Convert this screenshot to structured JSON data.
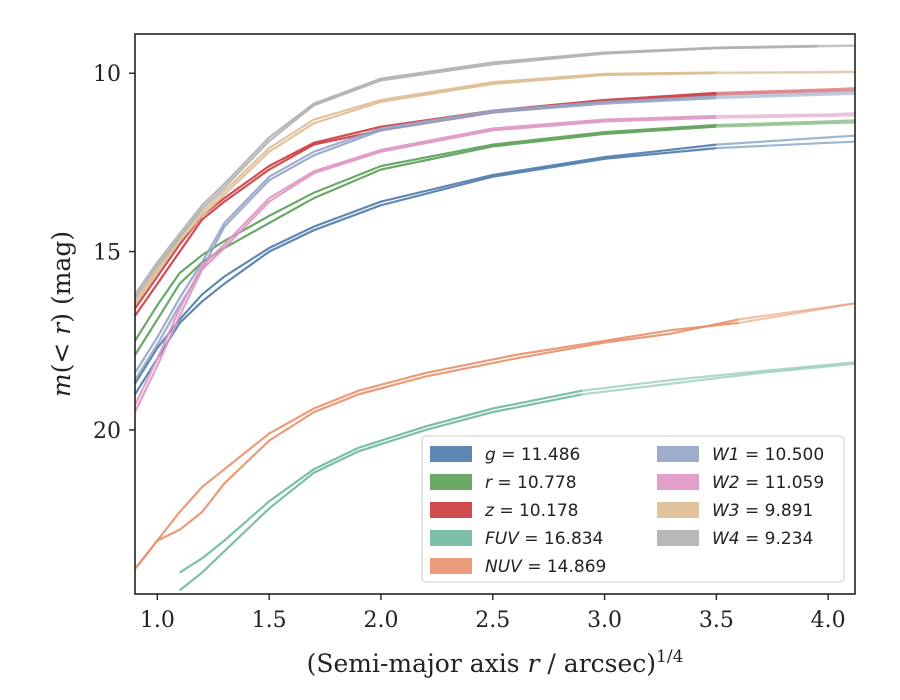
{
  "chart_data": {
    "type": "line",
    "xlabel": "(Semi-major axis r / arcsec)^{1/4}",
    "ylabel": "m(< r) (mag)",
    "xlim": [
      0.9,
      4.12
    ],
    "ylim": [
      24.6,
      8.9
    ],
    "y_inverted": true,
    "xticks": [
      "1.0",
      "1.5",
      "2.0",
      "2.5",
      "3.0",
      "3.5",
      "4.0"
    ],
    "yticks": [
      "10",
      "15",
      "20"
    ],
    "grid": false,
    "legend": {
      "placement": "lower-right",
      "columns": 2
    },
    "series": [
      {
        "name": "g",
        "label": "g = 11.486",
        "color": "#4c7bab",
        "x": [
          0.9,
          1.0,
          1.1,
          1.2,
          1.3,
          1.5,
          1.7,
          2.0,
          2.5,
          3.0,
          3.5,
          4.0,
          4.12
        ],
        "y": [
          19.0,
          18.0,
          17.0,
          16.4,
          15.9,
          15.0,
          14.4,
          13.7,
          12.9,
          12.4,
          12.1,
          11.95,
          11.92
        ],
        "y2": [
          18.7,
          17.7,
          16.9,
          16.2,
          15.7,
          14.9,
          14.3,
          13.6,
          12.85,
          12.35,
          12.0,
          11.8,
          11.75
        ],
        "fade_from_x": 3.6
      },
      {
        "name": "r",
        "label": "r = 10.778",
        "color": "#5a9f55",
        "x": [
          0.9,
          1.0,
          1.1,
          1.2,
          1.3,
          1.5,
          1.7,
          2.0,
          2.5,
          3.0,
          3.5,
          4.0,
          4.12
        ],
        "y": [
          17.9,
          16.9,
          15.9,
          15.3,
          14.9,
          14.2,
          13.5,
          12.7,
          12.05,
          11.7,
          11.5,
          11.4,
          11.38
        ],
        "y2": [
          17.5,
          16.5,
          15.6,
          15.1,
          14.7,
          14.0,
          13.35,
          12.6,
          12.0,
          11.65,
          11.45,
          11.35,
          11.32
        ],
        "fade_from_x": 3.6
      },
      {
        "name": "z",
        "label": "z = 10.178",
        "color": "#cc3a3f",
        "x": [
          0.9,
          1.0,
          1.1,
          1.2,
          1.3,
          1.5,
          1.7,
          2.0,
          2.5,
          3.0,
          3.5,
          4.0,
          4.12
        ],
        "y": [
          16.8,
          15.9,
          15.0,
          14.1,
          13.6,
          12.7,
          12.0,
          11.6,
          11.1,
          10.8,
          10.6,
          10.5,
          10.48
        ],
        "y2": [
          16.6,
          15.7,
          14.8,
          14.0,
          13.5,
          12.6,
          11.95,
          11.5,
          11.05,
          10.75,
          10.55,
          10.45,
          10.42
        ],
        "fade_from_x": 3.6
      },
      {
        "name": "FUV",
        "label": "FUV = 16.834",
        "color": "#6db8a0",
        "x": [
          1.1,
          1.2,
          1.3,
          1.5,
          1.7,
          1.9,
          2.2,
          2.5,
          2.9,
          3.3,
          3.7,
          4.12
        ],
        "y": [
          24.0,
          23.6,
          23.1,
          22.0,
          21.1,
          20.5,
          19.9,
          19.4,
          18.9,
          18.6,
          18.35,
          18.1
        ],
        "y2": [
          24.5,
          24.0,
          23.4,
          22.2,
          21.2,
          20.6,
          20.0,
          19.5,
          19.0,
          18.7,
          18.4,
          18.15
        ],
        "fade_from_x": 2.9
      },
      {
        "name": "NUV",
        "label": "NUV = 14.869",
        "color": "#e8906c",
        "x": [
          0.9,
          1.0,
          1.1,
          1.2,
          1.3,
          1.5,
          1.7,
          1.9,
          2.2,
          2.6,
          3.0,
          3.3,
          3.6,
          4.12
        ],
        "y": [
          23.9,
          23.1,
          22.3,
          21.6,
          21.1,
          20.1,
          19.4,
          18.9,
          18.4,
          17.9,
          17.5,
          17.2,
          17.0,
          16.45
        ],
        "y2": [
          23.9,
          23.1,
          22.8,
          22.3,
          21.5,
          20.3,
          19.5,
          19.0,
          18.5,
          18.0,
          17.55,
          17.3,
          16.9,
          16.45
        ],
        "fade_from_x": 3.6
      },
      {
        "name": "W1",
        "label": "W1 = 10.500",
        "color": "#94a4c7",
        "x": [
          0.9,
          1.0,
          1.1,
          1.2,
          1.3,
          1.5,
          1.7,
          2.0,
          2.5,
          3.0,
          3.5,
          4.0,
          4.12
        ],
        "y": [
          18.6,
          17.6,
          16.5,
          15.5,
          14.3,
          13.0,
          12.3,
          11.6,
          11.1,
          10.85,
          10.7,
          10.6,
          10.58
        ],
        "y2": [
          18.4,
          17.4,
          16.3,
          15.3,
          14.2,
          12.9,
          12.2,
          11.55,
          11.05,
          10.8,
          10.65,
          10.55,
          10.53
        ],
        "fade_from_x": 3.6
      },
      {
        "name": "W2",
        "label": "W2 = 11.059",
        "color": "#de96c3",
        "x": [
          0.9,
          1.0,
          1.1,
          1.2,
          1.3,
          1.5,
          1.7,
          2.0,
          2.5,
          3.0,
          3.5,
          4.0,
          4.12
        ],
        "y": [
          19.5,
          18.2,
          16.8,
          15.5,
          14.9,
          13.6,
          12.8,
          12.2,
          11.6,
          11.35,
          11.25,
          11.2,
          11.18
        ],
        "y2": [
          19.3,
          18.0,
          16.6,
          15.4,
          14.8,
          13.5,
          12.75,
          12.15,
          11.55,
          11.3,
          11.2,
          11.15,
          11.12
        ],
        "fade_from_x": 3.6
      },
      {
        "name": "W3",
        "label": "W3 = 9.891",
        "color": "#ddbd92",
        "x": [
          0.9,
          1.0,
          1.1,
          1.2,
          1.3,
          1.5,
          1.7,
          2.0,
          2.5,
          3.0,
          3.5,
          4.0,
          4.12
        ],
        "y": [
          16.5,
          15.6,
          14.7,
          14.0,
          13.4,
          12.2,
          11.4,
          10.8,
          10.3,
          10.05,
          10.0,
          9.98,
          9.97
        ],
        "y2": [
          16.4,
          15.5,
          14.6,
          13.9,
          13.3,
          12.1,
          11.3,
          10.75,
          10.25,
          10.02,
          9.98,
          9.96,
          9.95
        ],
        "fade_from_x": 3.6
      },
      {
        "name": "W4",
        "label": "W4 = 9.234",
        "color": "#b0b0b0",
        "x": [
          0.9,
          1.0,
          1.1,
          1.2,
          1.3,
          1.5,
          1.7,
          2.0,
          2.5,
          3.0,
          3.5,
          3.95,
          4.12
        ],
        "y": [
          16.3,
          15.4,
          14.6,
          13.8,
          13.2,
          11.9,
          10.9,
          10.2,
          9.75,
          9.45,
          9.3,
          9.25,
          9.23
        ],
        "y2": [
          16.2,
          15.3,
          14.5,
          13.7,
          13.1,
          11.8,
          10.85,
          10.15,
          9.7,
          9.42,
          9.28,
          9.23,
          9.22
        ],
        "fade_from_x": 3.95
      }
    ]
  }
}
